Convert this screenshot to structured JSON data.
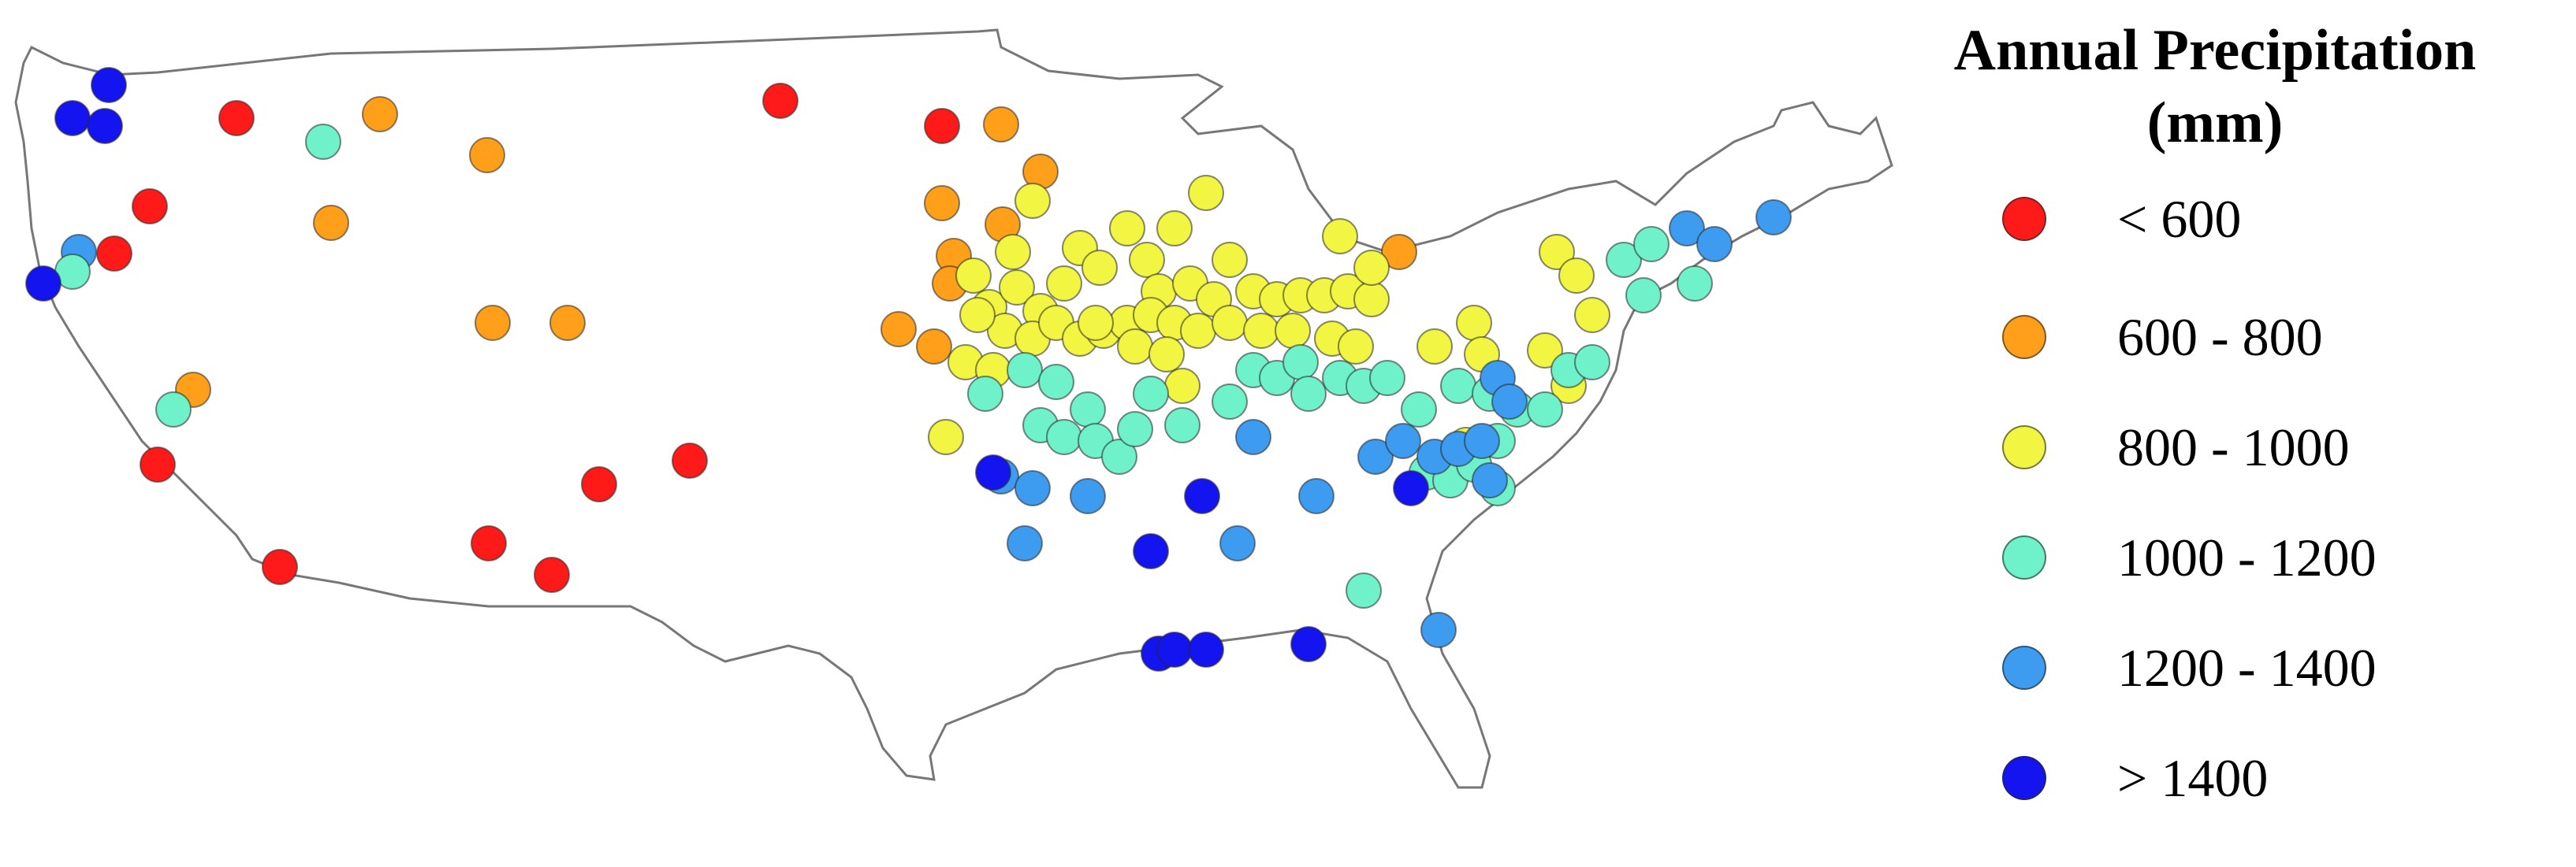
{
  "legend": {
    "title_line1": "Annual Precipitation",
    "title_line2": "(mm)",
    "classes": [
      {
        "label": "< 600",
        "color": "#ff1a1a"
      },
      {
        "label": "600 - 800",
        "color": "#ff9f1a"
      },
      {
        "label": "800 - 1000",
        "color": "#f2f542"
      },
      {
        "label": "1000 - 1200",
        "color": "#6ff2c9"
      },
      {
        "label": "1200 - 1400",
        "color": "#3d9cf0"
      },
      {
        "label": "> 1400",
        "color": "#1414f0"
      }
    ]
  },
  "map": {
    "region": "contiguous United States",
    "outline_color": "#777777"
  }
}
